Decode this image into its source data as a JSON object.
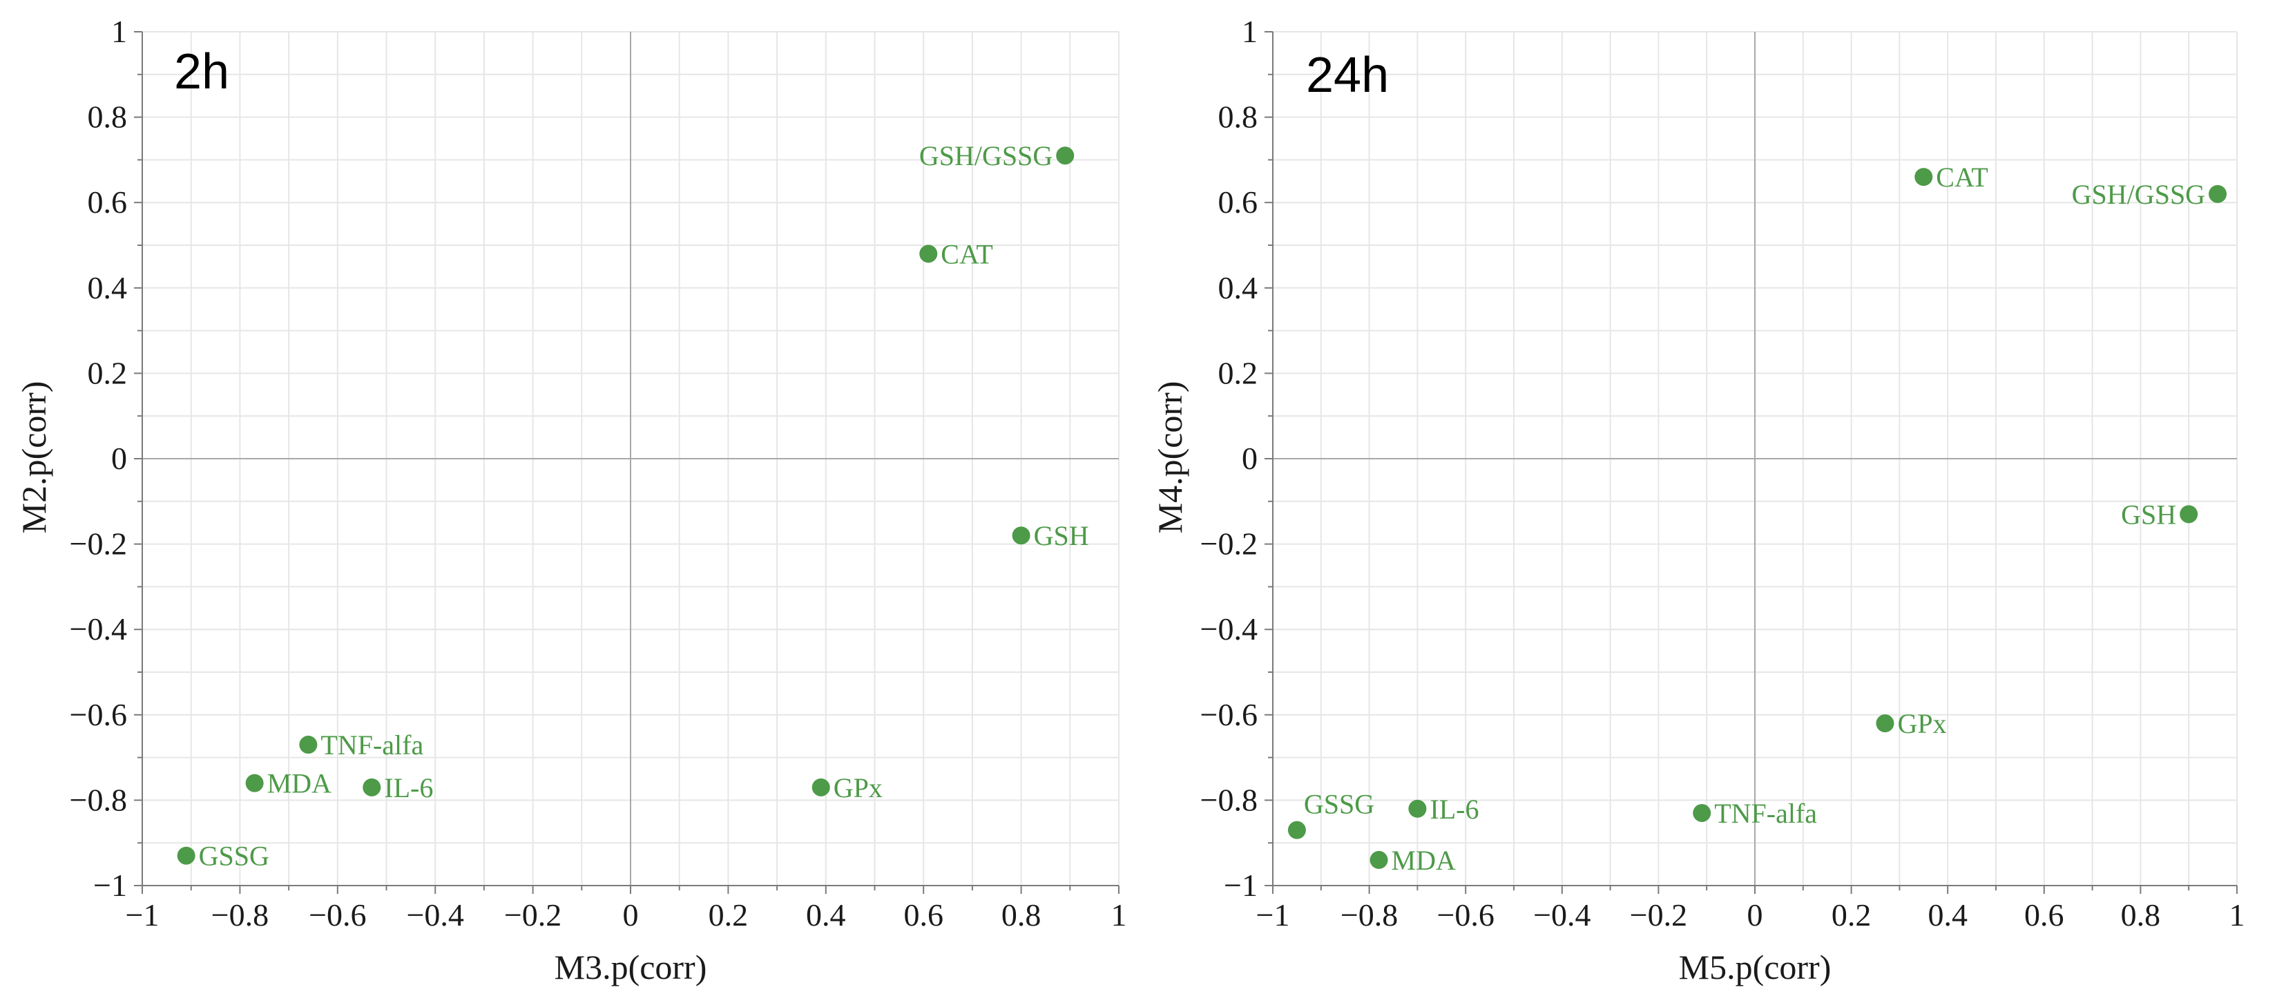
{
  "colors": {
    "point": "#4d9a48",
    "label": "#4d9a48",
    "grid": "#e6e6e6",
    "zero": "#a8a8a8"
  },
  "chart_data": [
    {
      "type": "scatter",
      "title": "2h",
      "xlabel": "M3.p(corr)",
      "ylabel": "M2.p(corr)",
      "xlim": [
        -1,
        1
      ],
      "ylim": [
        -1,
        1
      ],
      "xticks": [
        -1,
        -0.8,
        -0.6,
        -0.4,
        -0.2,
        0,
        0.2,
        0.4,
        0.6,
        0.8,
        1
      ],
      "yticks": [
        -1,
        -0.8,
        -0.6,
        -0.4,
        -0.2,
        0,
        0.2,
        0.4,
        0.6,
        0.8,
        1
      ],
      "xtick_labels": [
        "−1",
        "−0.8",
        "−0.6",
        "−0.4",
        "−0.2",
        "0",
        "0.2",
        "0.4",
        "0.6",
        "0.8",
        "1"
      ],
      "ytick_labels": [
        "−1",
        "−0.8",
        "−0.6",
        "−0.4",
        "−0.2",
        "0",
        "0.2",
        "0.4",
        "0.6",
        "0.8",
        "1"
      ],
      "grid": true,
      "points": [
        {
          "label": "GSH/GSSG",
          "x": 0.89,
          "y": 0.71,
          "label_side": "left"
        },
        {
          "label": "CAT",
          "x": 0.61,
          "y": 0.48,
          "label_side": "right"
        },
        {
          "label": "GSH",
          "x": 0.8,
          "y": -0.18,
          "label_side": "right"
        },
        {
          "label": "GPx",
          "x": 0.39,
          "y": -0.77,
          "label_side": "right"
        },
        {
          "label": "TNF-alfa",
          "x": -0.66,
          "y": -0.67,
          "label_side": "right"
        },
        {
          "label": "MDA",
          "x": -0.77,
          "y": -0.76,
          "label_side": "right"
        },
        {
          "label": "IL-6",
          "x": -0.53,
          "y": -0.77,
          "label_side": "right"
        },
        {
          "label": "GSSG",
          "x": -0.91,
          "y": -0.93,
          "label_side": "right"
        }
      ]
    },
    {
      "type": "scatter",
      "title": "24h",
      "xlabel": "M5.p(corr)",
      "ylabel": "M4.p(corr)",
      "xlim": [
        -1,
        1
      ],
      "ylim": [
        -1,
        1
      ],
      "xticks": [
        -1,
        -0.8,
        -0.6,
        -0.4,
        -0.2,
        0,
        0.2,
        0.4,
        0.6,
        0.8,
        1
      ],
      "yticks": [
        -1,
        -0.8,
        -0.6,
        -0.4,
        -0.2,
        0,
        0.2,
        0.4,
        0.6,
        0.8,
        1
      ],
      "xtick_labels": [
        "−1",
        "−0.8",
        "−0.6",
        "−0.4",
        "−0.2",
        "0",
        "0.2",
        "0.4",
        "0.6",
        "0.8",
        "1"
      ],
      "ytick_labels": [
        "−1",
        "−0.8",
        "−0.6",
        "−0.4",
        "−0.2",
        "0",
        "0.2",
        "0.4",
        "0.6",
        "0.8",
        "1"
      ],
      "grid": true,
      "points": [
        {
          "label": "CAT",
          "x": 0.35,
          "y": 0.66,
          "label_side": "right"
        },
        {
          "label": "GSH/GSSG",
          "x": 0.96,
          "y": 0.62,
          "label_side": "left"
        },
        {
          "label": "GSH",
          "x": 0.9,
          "y": -0.13,
          "label_side": "left"
        },
        {
          "label": "GPx",
          "x": 0.27,
          "y": -0.62,
          "label_side": "right"
        },
        {
          "label": "TNF-alfa",
          "x": -0.11,
          "y": -0.83,
          "label_side": "right"
        },
        {
          "label": "GSSG",
          "x": -0.95,
          "y": -0.87,
          "label_side": "above-right"
        },
        {
          "label": "IL-6",
          "x": -0.7,
          "y": -0.82,
          "label_side": "right"
        },
        {
          "label": "MDA",
          "x": -0.78,
          "y": -0.94,
          "label_side": "right"
        }
      ]
    }
  ]
}
